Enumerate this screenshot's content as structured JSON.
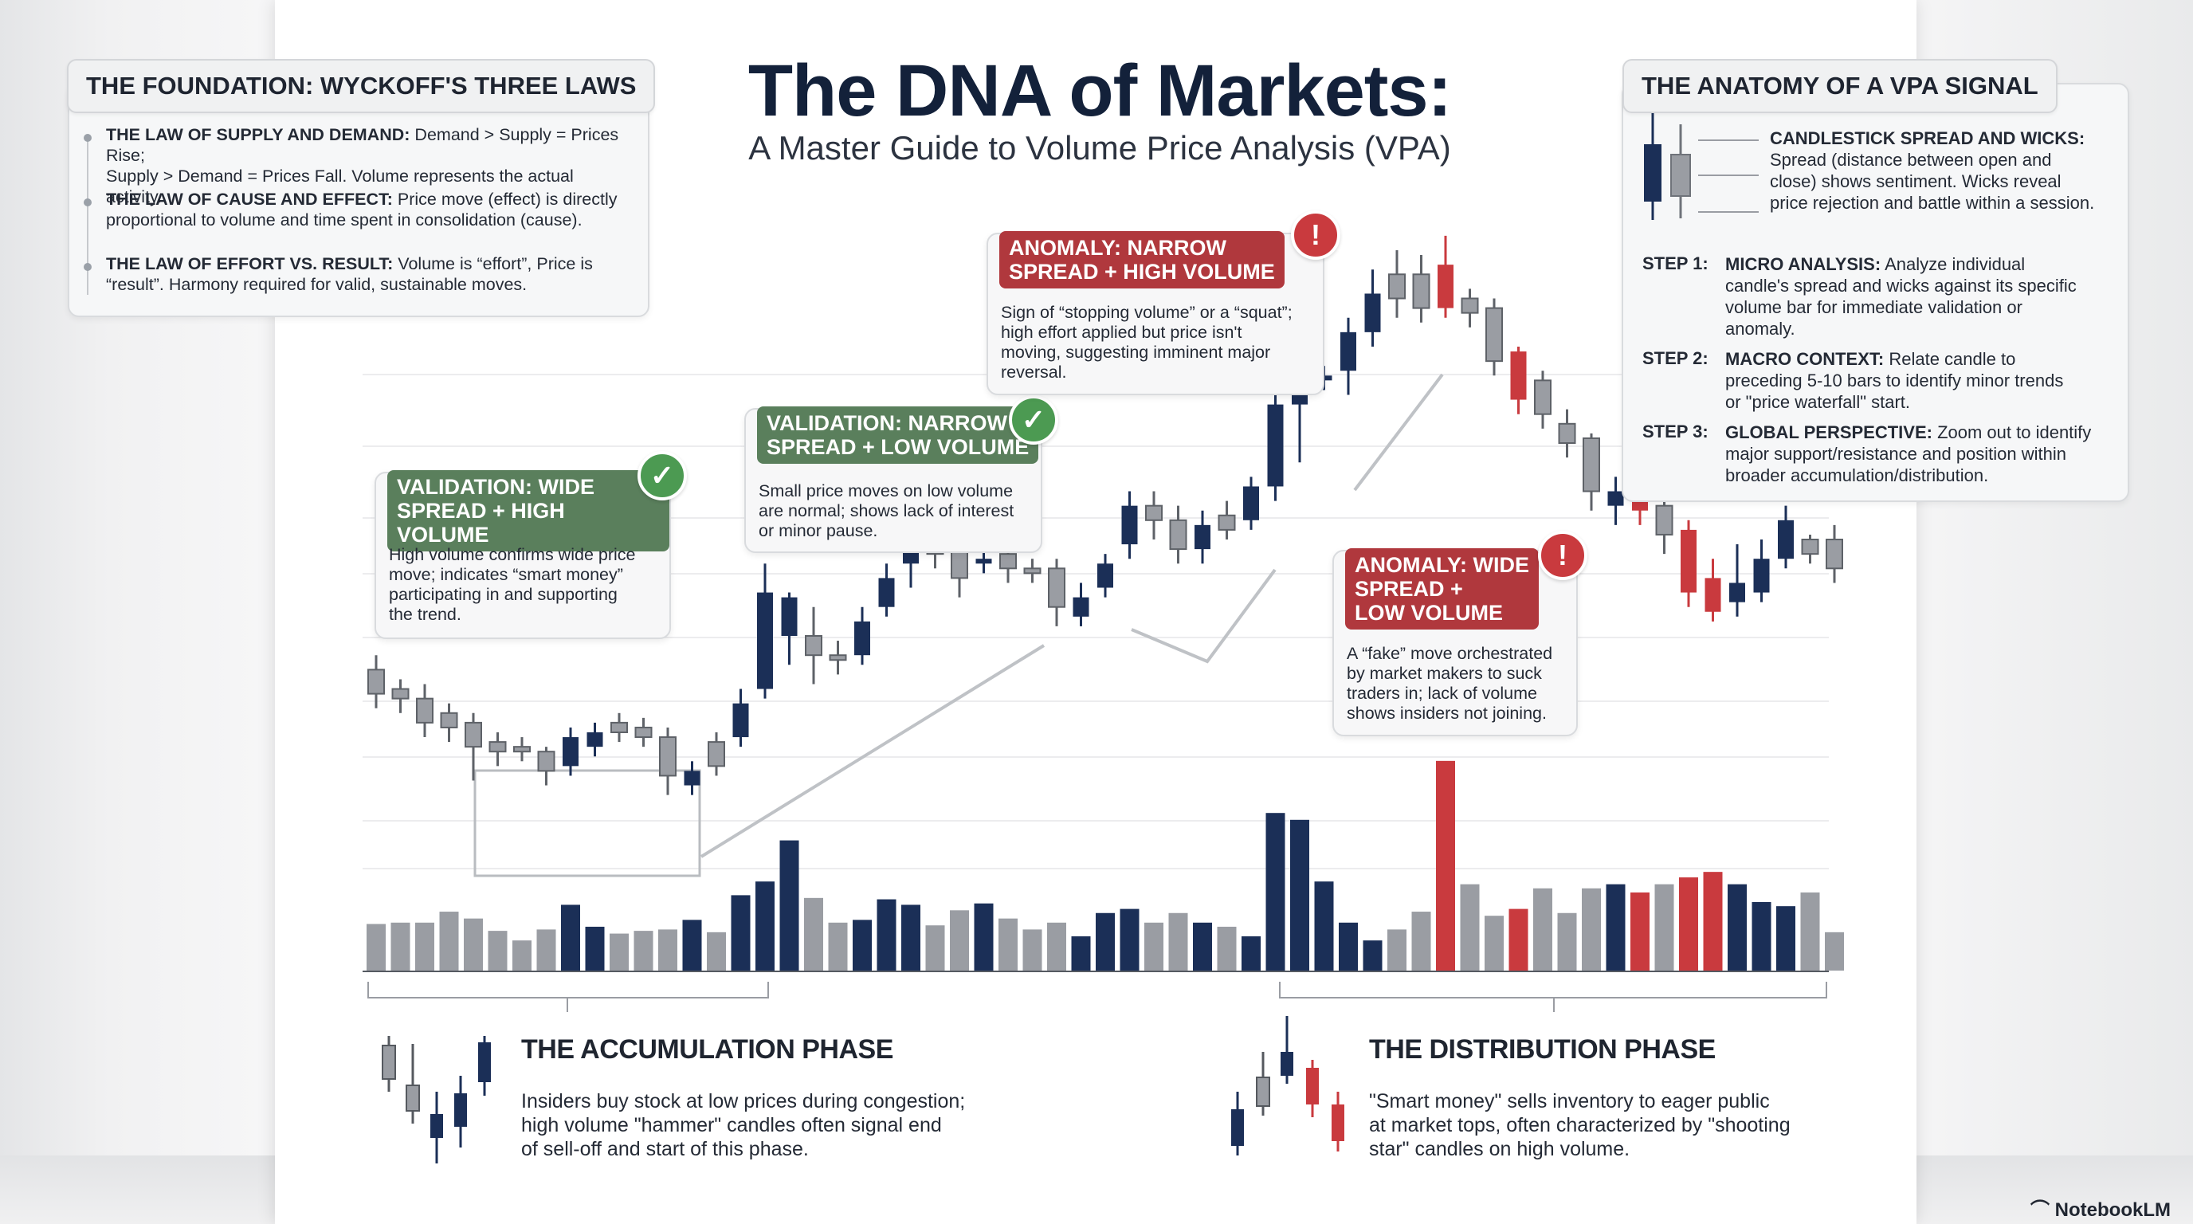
{
  "title": "The DNA of Markets:",
  "subtitle": "A Master Guide to Volume Price Analysis (VPA)",
  "foundation": {
    "heading": "THE FOUNDATION: WYCKOFF'S THREE LAWS",
    "laws": [
      {
        "name": "THE LAW OF SUPPLY AND DEMAND:",
        "text_1": " Demand > Supply = Prices Rise;",
        "text_2": "Supply > Demand = Prices Fall. Volume represents the actual activity."
      },
      {
        "name": "THE LAW OF CAUSE AND EFFECT:",
        "text_1": " Price move (effect) is directly",
        "text_2": "proportional to volume and time spent in consolidation (cause)."
      },
      {
        "name": "THE LAW OF EFFORT VS. RESULT:",
        "text_1": " Volume is “effort”, Price is",
        "text_2": "“result”. Harmony required for valid, sustainable moves."
      }
    ]
  },
  "anatomy": {
    "heading": "THE ANATOMY OF A VPA SIGNAL",
    "candle_title": "CANDLESTICK SPREAD AND WICKS:",
    "candle_lines": [
      "Spread (distance between open and",
      "close) shows sentiment. Wicks reveal",
      "price rejection and battle within a session."
    ],
    "steps": [
      {
        "key": "STEP 1:",
        "name": "MICRO ANALYSIS:",
        "lines": [
          " Analyze individual",
          "candle's spread and wicks against its specific",
          "volume bar for immediate validation or",
          "anomaly."
        ]
      },
      {
        "key": "STEP 2:",
        "name": "MACRO CONTEXT:",
        "lines": [
          " Relate candle to",
          "preceding 5-10 bars to identify minor trends",
          "or \"price waterfall\" start."
        ]
      },
      {
        "key": "STEP 3:",
        "name": "GLOBAL PERSPECTIVE:",
        "lines": [
          " Zoom out to identify",
          "major support/resistance and position within",
          "broader accumulation/distribution."
        ]
      }
    ]
  },
  "callouts": [
    {
      "tag": [
        "VALIDATION: WIDE",
        "SPREAD + HIGH VOLUME"
      ],
      "lines": [
        "High volume confirms wide price",
        "move; indicates “smart money”",
        "participating in and supporting",
        "the trend."
      ],
      "kind": "validation",
      "badge_symbol": "✓",
      "color": "#5a7f5c"
    },
    {
      "tag": [
        "VALIDATION: NARROW",
        "SPREAD + LOW VOLUME"
      ],
      "lines": [
        "Small price moves on low volume",
        "are normal; shows lack of interest",
        "or minor pause."
      ],
      "kind": "validation",
      "badge_symbol": "✓",
      "color": "#5a7f5c"
    },
    {
      "tag": [
        "ANOMALY: NARROW",
        "SPREAD + HIGH VOLUME"
      ],
      "lines": [
        "Sign of “stopping volume” or a “squat”;",
        "high effort applied but price isn't",
        "moving, suggesting imminent major",
        "reversal."
      ],
      "kind": "anomaly",
      "badge_symbol": "!",
      "color": "#b0383d"
    },
    {
      "tag": [
        "ANOMALY: WIDE",
        "SPREAD +",
        "LOW VOLUME"
      ],
      "lines": [
        "A “fake” move orchestrated",
        "by market makers to suck",
        "traders in; lack of volume",
        "shows insiders not joining."
      ],
      "kind": "anomaly",
      "badge_symbol": "!",
      "color": "#b0383d"
    }
  ],
  "phases": {
    "accumulation": {
      "heading": "THE ACCUMULATION PHASE",
      "lines": [
        "Insiders buy stock at low prices during congestion;",
        "high volume \"hammer\" candles often signal end",
        "of sell-off and start of this phase."
      ]
    },
    "distribution": {
      "heading": "THE DISTRIBUTION PHASE",
      "lines": [
        "\"Smart money\" sells inventory to eager public",
        "at market tops, often characterized by \"shooting",
        "star\" candles on high volume."
      ]
    }
  },
  "brand": "NotebookLM",
  "colors": {
    "navy": "#1b2f57",
    "gray": "#9a9da3",
    "red": "#c93a3e",
    "green": "#4c9a52",
    "title": "#13213a"
  },
  "chart_data": {
    "type": "candlestick_with_volume",
    "title": "",
    "xlabel": "",
    "ylabel": "",
    "grid": true,
    "price_range": [
      0,
      100
    ],
    "volume_range": [
      0,
      100
    ],
    "candles": [
      {
        "o": 33,
        "c": 28,
        "h": 36,
        "l": 25,
        "v": 34,
        "t": "g"
      },
      {
        "o": 29,
        "c": 27,
        "h": 31,
        "l": 24,
        "v": 35,
        "t": "g"
      },
      {
        "o": 27,
        "c": 22,
        "h": 30,
        "l": 19,
        "v": 35,
        "t": "g"
      },
      {
        "o": 24,
        "c": 21,
        "h": 26,
        "l": 18,
        "v": 43,
        "t": "g"
      },
      {
        "o": 22,
        "c": 17,
        "h": 24,
        "l": 10,
        "v": 38,
        "t": "g"
      },
      {
        "o": 18,
        "c": 16,
        "h": 20,
        "l": 13,
        "v": 29,
        "t": "g"
      },
      {
        "o": 17,
        "c": 16,
        "h": 19,
        "l": 14,
        "v": 22,
        "t": "g"
      },
      {
        "o": 16,
        "c": 12,
        "h": 17,
        "l": 9,
        "v": 30,
        "t": "g"
      },
      {
        "o": 13,
        "c": 19,
        "h": 21,
        "l": 11,
        "v": 48,
        "t": "n"
      },
      {
        "o": 17,
        "c": 20,
        "h": 22,
        "l": 15,
        "v": 32,
        "t": "n"
      },
      {
        "o": 20,
        "c": 22,
        "h": 24,
        "l": 18,
        "v": 27,
        "t": "g"
      },
      {
        "o": 21,
        "c": 19,
        "h": 23,
        "l": 17,
        "v": 29,
        "t": "g"
      },
      {
        "o": 19,
        "c": 11,
        "h": 21,
        "l": 7,
        "v": 30,
        "t": "g"
      },
      {
        "o": 9,
        "c": 12,
        "h": 14,
        "l": 7,
        "v": 37,
        "t": "n"
      },
      {
        "o": 13,
        "c": 18,
        "h": 20,
        "l": 11,
        "v": 28,
        "t": "g"
      },
      {
        "o": 19,
        "c": 26,
        "h": 29,
        "l": 17,
        "v": 55,
        "t": "n"
      },
      {
        "o": 29,
        "c": 49,
        "h": 55,
        "l": 27,
        "v": 65,
        "t": "n"
      },
      {
        "o": 48,
        "c": 40,
        "h": 49,
        "l": 34,
        "v": 95,
        "t": "n"
      },
      {
        "o": 40,
        "c": 36,
        "h": 46,
        "l": 30,
        "v": 53,
        "t": "g"
      },
      {
        "o": 36,
        "c": 35,
        "h": 39,
        "l": 32,
        "v": 35,
        "t": "g"
      },
      {
        "o": 36,
        "c": 43,
        "h": 46,
        "l": 34,
        "v": 37,
        "t": "n"
      },
      {
        "o": 46,
        "c": 52,
        "h": 55,
        "l": 44,
        "v": 52,
        "t": "n"
      },
      {
        "o": 55,
        "c": 63,
        "h": 67,
        "l": 50,
        "v": 48,
        "t": "n"
      },
      {
        "o": 62,
        "c": 57,
        "h": 64,
        "l": 54,
        "v": 33,
        "t": "g"
      },
      {
        "o": 61,
        "c": 52,
        "h": 64,
        "l": 48,
        "v": 44,
        "t": "g"
      },
      {
        "o": 56,
        "c": 55,
        "h": 58,
        "l": 53,
        "v": 49,
        "t": "n"
      },
      {
        "o": 57,
        "c": 54,
        "h": 60,
        "l": 51,
        "v": 38,
        "t": "g"
      },
      {
        "o": 54,
        "c": 53,
        "h": 56,
        "l": 51,
        "v": 30,
        "t": "g"
      },
      {
        "o": 54,
        "c": 46,
        "h": 56,
        "l": 42,
        "v": 35,
        "t": "g"
      },
      {
        "o": 48,
        "c": 44,
        "h": 51,
        "l": 42,
        "v": 25,
        "t": "n"
      },
      {
        "o": 50,
        "c": 55,
        "h": 57,
        "l": 48,
        "v": 42,
        "t": "n"
      },
      {
        "o": 59,
        "c": 67,
        "h": 70,
        "l": 56,
        "v": 45,
        "t": "n"
      },
      {
        "o": 67,
        "c": 64,
        "h": 70,
        "l": 60,
        "v": 35,
        "t": "g"
      },
      {
        "o": 64,
        "c": 58,
        "h": 67,
        "l": 55,
        "v": 42,
        "t": "g"
      },
      {
        "o": 58,
        "c": 63,
        "h": 66,
        "l": 55,
        "v": 35,
        "t": "n"
      },
      {
        "o": 62,
        "c": 65,
        "h": 68,
        "l": 60,
        "v": 32,
        "t": "g"
      },
      {
        "o": 64,
        "c": 71,
        "h": 73,
        "l": 62,
        "v": 25,
        "t": "n"
      },
      {
        "o": 71,
        "c": 88,
        "h": 91,
        "l": 68,
        "v": 115,
        "t": "n"
      },
      {
        "o": 88,
        "c": 93,
        "h": 95,
        "l": 76,
        "v": 110,
        "t": "n"
      },
      {
        "o": 93,
        "c": 94,
        "h": 96,
        "l": 91,
        "v": 65,
        "t": "n"
      },
      {
        "o": 95,
        "c": 103,
        "h": 106,
        "l": 90,
        "v": 35,
        "t": "n"
      },
      {
        "o": 103,
        "c": 111,
        "h": 116,
        "l": 100,
        "v": 22,
        "t": "n"
      },
      {
        "o": 110,
        "c": 115,
        "h": 120,
        "l": 106,
        "v": 30,
        "t": "g"
      },
      {
        "o": 115,
        "c": 108,
        "h": 119,
        "l": 105,
        "v": 43,
        "t": "g"
      },
      {
        "o": 108,
        "c": 117,
        "h": 123,
        "l": 106,
        "v": 153,
        "t": "r"
      },
      {
        "o": 110,
        "c": 107,
        "h": 112,
        "l": 104,
        "v": 63,
        "t": "g"
      },
      {
        "o": 108,
        "c": 97,
        "h": 110,
        "l": 94,
        "v": 40,
        "t": "g"
      },
      {
        "o": 99,
        "c": 89,
        "h": 100,
        "l": 86,
        "v": 45,
        "t": "r"
      },
      {
        "o": 93,
        "c": 86,
        "h": 95,
        "l": 83,
        "v": 60,
        "t": "g"
      },
      {
        "o": 84,
        "c": 80,
        "h": 87,
        "l": 77,
        "v": 42,
        "t": "g"
      },
      {
        "o": 81,
        "c": 70,
        "h": 82,
        "l": 66,
        "v": 60,
        "t": "g"
      },
      {
        "o": 67,
        "c": 70,
        "h": 73,
        "l": 63,
        "v": 63,
        "t": "n"
      },
      {
        "o": 71,
        "c": 66,
        "h": 74,
        "l": 63,
        "v": 57,
        "t": "r"
      },
      {
        "o": 67,
        "c": 61,
        "h": 69,
        "l": 57,
        "v": 63,
        "t": "g"
      },
      {
        "o": 62,
        "c": 49,
        "h": 64,
        "l": 46,
        "v": 68,
        "t": "r"
      },
      {
        "o": 52,
        "c": 45,
        "h": 56,
        "l": 43,
        "v": 72,
        "t": "r"
      },
      {
        "o": 47,
        "c": 51,
        "h": 59,
        "l": 44,
        "v": 63,
        "t": "n"
      },
      {
        "o": 49,
        "c": 56,
        "h": 60,
        "l": 47,
        "v": 50,
        "t": "n"
      },
      {
        "o": 56,
        "c": 64,
        "h": 67,
        "l": 54,
        "v": 47,
        "t": "n"
      },
      {
        "o": 60,
        "c": 57,
        "h": 61,
        "l": 55,
        "v": 57,
        "t": "g"
      },
      {
        "o": 60,
        "c": 54,
        "h": 63,
        "l": 51,
        "v": 28,
        "t": "g"
      }
    ]
  }
}
